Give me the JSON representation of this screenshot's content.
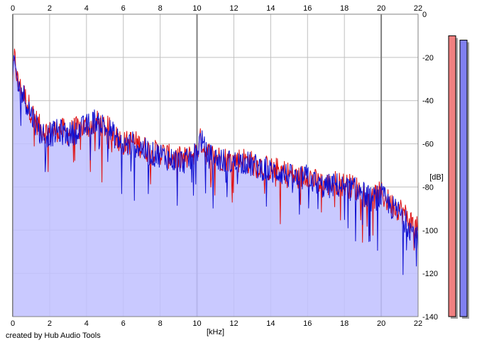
{
  "chart_data": {
    "type": "area",
    "xlabel": "[kHz]",
    "ylabel": "[dB]",
    "xlim": [
      0,
      22
    ],
    "ylim": [
      -140,
      0
    ],
    "x_ticks": [
      0,
      2,
      4,
      6,
      8,
      10,
      12,
      14,
      16,
      18,
      20,
      22
    ],
    "y_ticks": [
      0,
      -20,
      -40,
      -60,
      -80,
      -100,
      -120,
      -140
    ],
    "grid": true,
    "series": [
      {
        "color": "#e01010",
        "envelope_x": [
          0,
          0.1,
          0.3,
          0.6,
          1.0,
          1.5,
          2.0,
          2.5,
          3.0,
          3.5,
          4.0,
          4.5,
          5.0,
          5.5,
          6.0,
          6.5,
          7.0,
          7.5,
          8.0,
          8.5,
          9.0,
          9.5,
          10.0,
          10.2,
          10.5,
          11.0,
          11.5,
          12.0,
          12.5,
          13.0,
          13.5,
          14.0,
          14.5,
          15.0,
          15.5,
          16.0,
          16.5,
          17.0,
          17.5,
          18.0,
          18.5,
          19.0,
          19.5,
          20.0,
          20.5,
          21.0,
          21.5,
          22.0
        ],
        "envelope_y": [
          -30,
          -20,
          -33,
          -37,
          -45,
          -53,
          -55,
          -53,
          -55,
          -53,
          -52,
          -50,
          -52,
          -55,
          -60,
          -59,
          -61,
          -64,
          -64,
          -66,
          -67,
          -67,
          -63,
          -58,
          -64,
          -66,
          -67,
          -68,
          -67,
          -69,
          -70,
          -72,
          -72,
          -74,
          -76,
          -74,
          -78,
          -79,
          -78,
          -79,
          -80,
          -82,
          -85,
          -83,
          -88,
          -90,
          -95,
          -100
        ]
      },
      {
        "color": "#1010d0",
        "envelope_x": [
          0,
          0.1,
          0.3,
          0.6,
          1.0,
          1.5,
          2.0,
          2.5,
          3.0,
          3.5,
          4.0,
          4.5,
          5.0,
          5.5,
          6.0,
          6.5,
          7.0,
          7.5,
          8.0,
          8.5,
          9.0,
          9.5,
          10.0,
          10.2,
          10.5,
          11.0,
          11.5,
          12.0,
          12.5,
          13.0,
          13.5,
          14.0,
          14.5,
          15.0,
          15.5,
          16.0,
          16.5,
          17.0,
          17.5,
          18.0,
          18.5,
          19.0,
          19.5,
          20.0,
          20.5,
          21.0,
          21.5,
          22.0
        ],
        "envelope_y": [
          -30,
          -22,
          -34,
          -38,
          -46,
          -55,
          -56,
          -54,
          -56,
          -54,
          -52,
          -49,
          -52,
          -56,
          -61,
          -60,
          -62,
          -65,
          -65,
          -67,
          -68,
          -68,
          -64,
          -57,
          -65,
          -67,
          -68,
          -69,
          -68,
          -70,
          -71,
          -73,
          -73,
          -75,
          -77,
          -75,
          -79,
          -80,
          -79,
          -80,
          -81,
          -83,
          -86,
          -84,
          -89,
          -92,
          -98,
          -105
        ]
      }
    ],
    "fill_color": "#c0c0ff",
    "level_meters": [
      {
        "color": "#f08080",
        "level_db": -10
      },
      {
        "color": "#8080f0",
        "level_db": -12
      }
    ]
  },
  "footer": "created by Hub Audio Tools"
}
